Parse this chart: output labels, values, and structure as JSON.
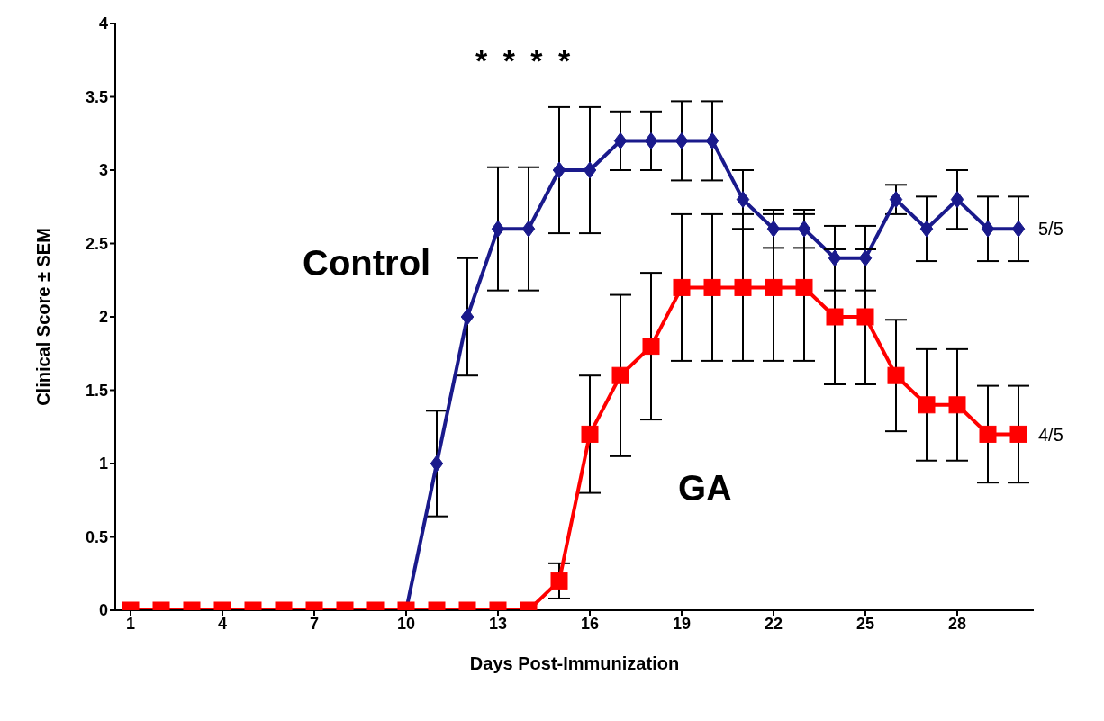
{
  "chart_data": {
    "type": "line",
    "xlabel": "Days Post-Immunization",
    "ylabel": "Clinical Score ± SEM",
    "x": [
      1,
      2,
      3,
      4,
      5,
      6,
      7,
      8,
      9,
      10,
      11,
      12,
      13,
      14,
      15,
      16,
      17,
      18,
      19,
      20,
      21,
      22,
      23,
      24,
      25,
      26,
      27,
      28,
      29,
      30
    ],
    "series": [
      {
        "name": "Control",
        "color": "#1a1a8c",
        "marker": "diamond",
        "values": [
          null,
          null,
          null,
          null,
          null,
          null,
          null,
          null,
          null,
          0,
          1,
          2,
          2.6,
          2.6,
          3,
          3,
          3.2,
          3.2,
          3.2,
          3.2,
          2.8,
          2.6,
          2.6,
          2.4,
          2.4,
          2.8,
          2.6,
          2.8,
          2.6,
          2.6
        ],
        "errors": [
          null,
          null,
          null,
          null,
          null,
          null,
          null,
          null,
          null,
          null,
          0.36,
          0.4,
          0.42,
          0.42,
          0.43,
          0.43,
          0.2,
          0.2,
          0.27,
          0.27,
          0.2,
          0.13,
          0.13,
          0.22,
          0.22,
          0.1,
          0.22,
          0.2,
          0.22,
          0.22
        ]
      },
      {
        "name": "GA",
        "color": "#ff0000",
        "marker": "square",
        "values": [
          0,
          0,
          0,
          0,
          0,
          0,
          0,
          0,
          0,
          0,
          0,
          0,
          0,
          0,
          0.2,
          1.2,
          1.6,
          1.8,
          2.2,
          2.2,
          2.2,
          2.2,
          2.2,
          2.0,
          2.0,
          1.6,
          1.4,
          1.4,
          1.2,
          1.2
        ],
        "errors": [
          null,
          null,
          null,
          null,
          null,
          null,
          null,
          null,
          null,
          null,
          null,
          null,
          null,
          null,
          0.12,
          0.4,
          0.55,
          0.5,
          0.5,
          0.5,
          0.5,
          0.5,
          0.5,
          0.46,
          0.46,
          0.38,
          0.38,
          0.38,
          0.33,
          0.33
        ]
      }
    ],
    "xlim": [
      0.5,
      30.5
    ],
    "xticks": [
      1,
      4,
      7,
      10,
      13,
      16,
      19,
      22,
      25,
      28
    ],
    "ylim": [
      0,
      4
    ],
    "yticks": [
      0,
      0.5,
      1,
      1.5,
      2,
      2.5,
      3,
      3.5,
      4
    ],
    "grid": false,
    "legend": false,
    "line_style": "solid",
    "annotations": [
      "* * * *",
      {
        "text": "5/5",
        "x": 30,
        "y": 2.6
      },
      {
        "text": "4/5",
        "x": 30,
        "y": 1.2
      }
    ]
  }
}
